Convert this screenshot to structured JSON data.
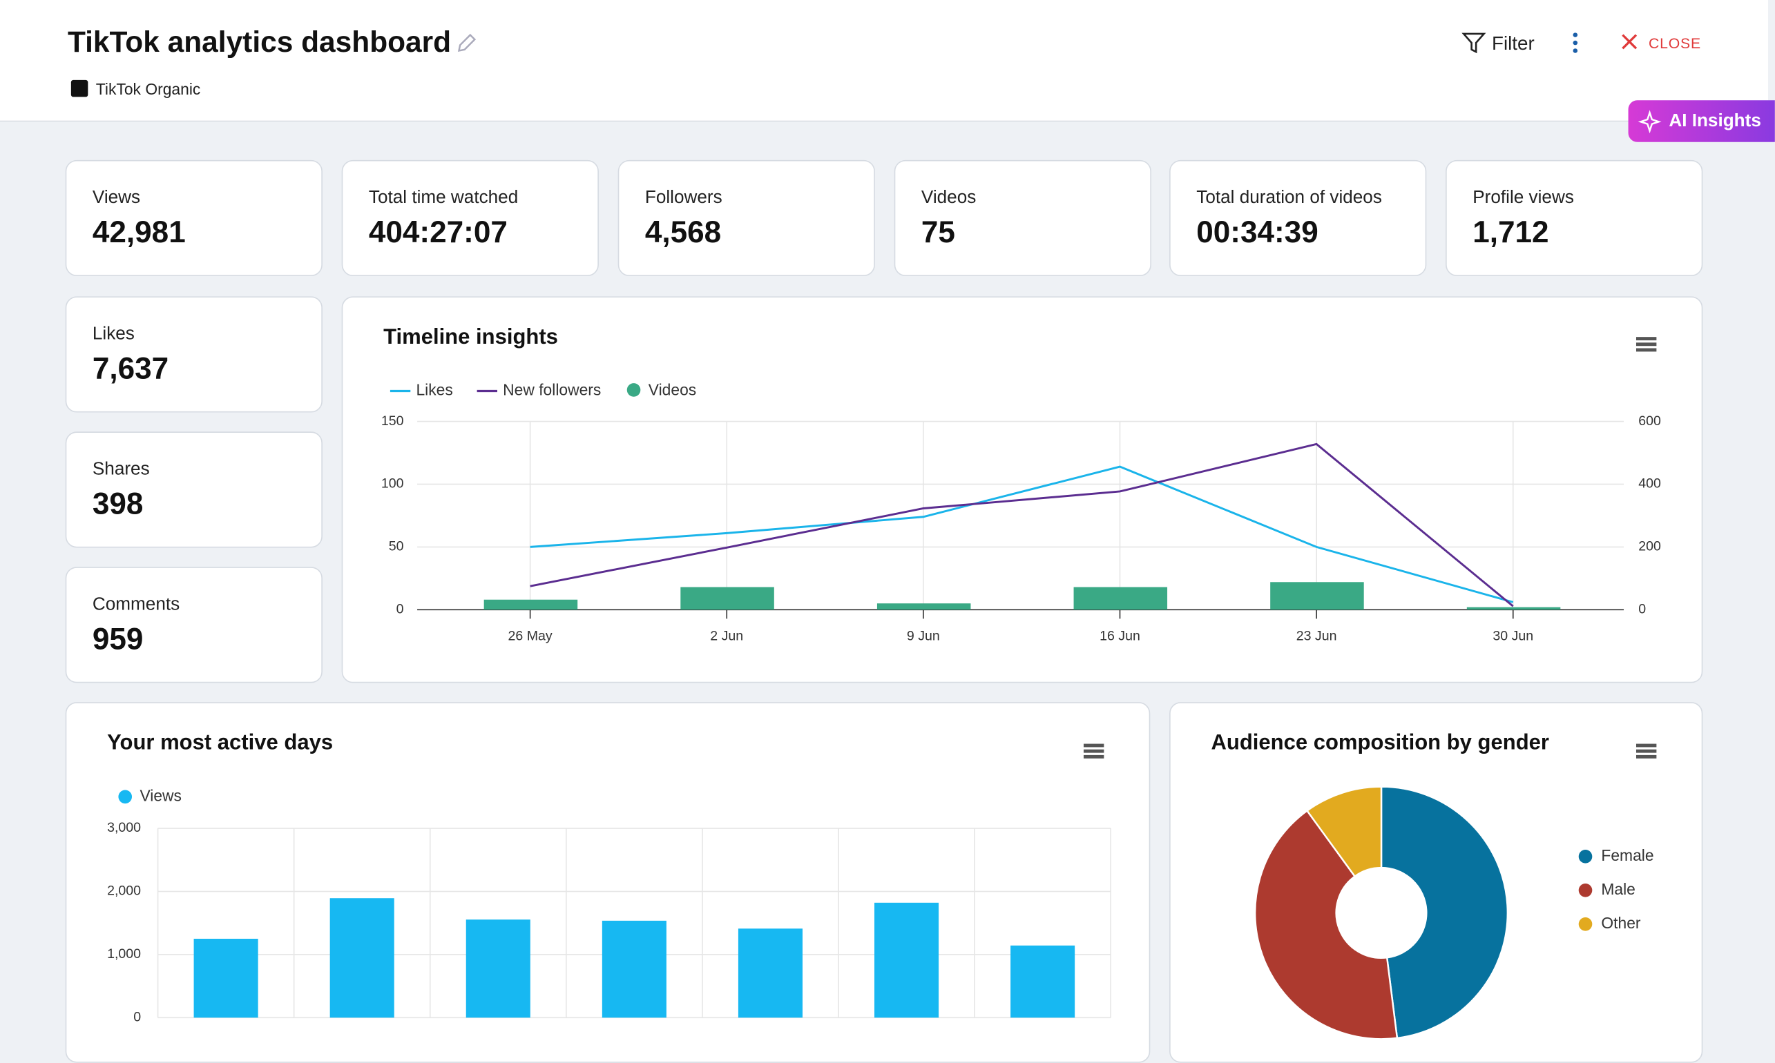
{
  "header": {
    "title": "TikTok analytics dashboard",
    "source": "TikTok Organic",
    "filter": "Filter",
    "close": "CLOSE",
    "ai": "AI Insights"
  },
  "kpis": [
    {
      "label": "Views",
      "value": "42,981"
    },
    {
      "label": "Total time watched",
      "value": "404:27:07"
    },
    {
      "label": "Followers",
      "value": "4,568"
    },
    {
      "label": "Videos",
      "value": "75"
    },
    {
      "label": "Total duration of videos",
      "value": "00:34:39"
    },
    {
      "label": "Profile views",
      "value": "1,712"
    },
    {
      "label": "Likes",
      "value": "7,637"
    },
    {
      "label": "Shares",
      "value": "398"
    },
    {
      "label": "Comments",
      "value": "959"
    }
  ],
  "chart_data": [
    {
      "type": "combo",
      "title": "Timeline insights",
      "categories": [
        "26 May",
        "2 Jun",
        "9 Jun",
        "16 Jun",
        "23 Jun",
        "30 Jun"
      ],
      "series": [
        {
          "name": "Likes",
          "type": "line",
          "color": "#1ab4ea",
          "values": [
            50,
            61,
            74,
            114,
            50,
            6
          ]
        },
        {
          "name": "New followers",
          "type": "line",
          "axis": "y2",
          "color": "#5b2d90",
          "values": [
            75,
            198,
            323,
            377,
            528,
            11
          ]
        },
        {
          "name": "Videos",
          "type": "bar",
          "color": "#3aa985",
          "values": [
            8,
            18,
            5,
            18,
            22,
            2
          ]
        }
      ],
      "ylim": [
        0,
        150
      ],
      "yticks": [
        0,
        50,
        100,
        150
      ],
      "y2lim": [
        0,
        600
      ],
      "y2ticks": [
        0,
        200,
        400,
        600
      ],
      "grid": true
    },
    {
      "type": "bar",
      "title": "Your most active days",
      "categories": [
        null,
        null,
        null,
        null,
        null,
        null,
        null
      ],
      "series": [
        {
          "name": "Views",
          "color": "#17b8f2",
          "values": [
            1250,
            1893,
            1554,
            1536,
            1411,
            1821,
            1143
          ]
        }
      ],
      "ylim": [
        0,
        3000
      ],
      "yticks": [
        0,
        {
          "value": 1000,
          "label": "1,000"
        },
        {
          "value": 2000,
          "label": "2,000"
        },
        {
          "value": 3000,
          "label": "3,000"
        }
      ],
      "grid": true
    },
    {
      "type": "pie",
      "title": "Audience composition by gender",
      "categories": [
        "Female",
        "Male",
        "Other"
      ],
      "values": [
        48,
        42,
        10
      ],
      "colors": [
        "#07729e",
        "#ad3a2f",
        "#e2aa1f"
      ],
      "legend": "right"
    }
  ]
}
